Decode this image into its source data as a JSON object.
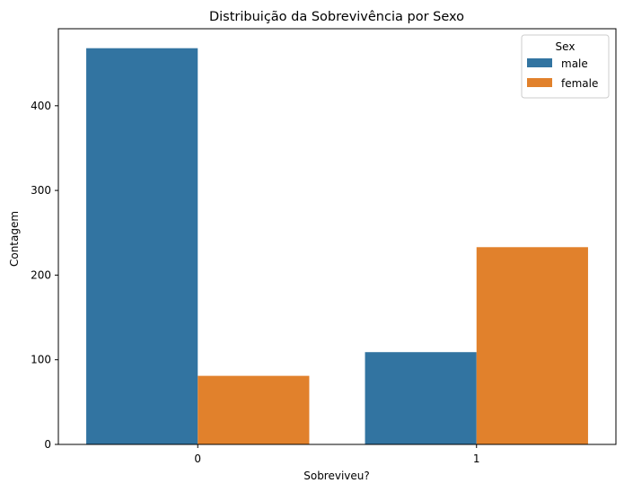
{
  "chart_data": {
    "type": "bar",
    "title": "Distribuição da Sobrevivência por Sexo",
    "xlabel": "Sobreviveu?",
    "ylabel": "Contagem",
    "categories": [
      "0",
      "1"
    ],
    "series": [
      {
        "name": "male",
        "values": [
          468,
          109
        ],
        "color": "#3274a1"
      },
      {
        "name": "female",
        "values": [
          81,
          233
        ],
        "color": "#e1812c"
      }
    ],
    "ylim": [
      0,
      491
    ],
    "yticks": [
      0,
      100,
      200,
      300,
      400
    ],
    "grid": false,
    "legend": {
      "title": "Sex",
      "position": "top-right"
    }
  }
}
